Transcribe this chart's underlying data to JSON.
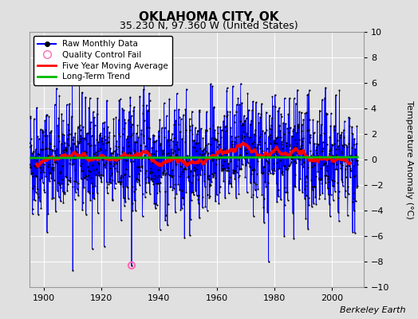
{
  "title": "OKLAHOMA CITY, OK",
  "subtitle": "35.230 N, 97.360 W (United States)",
  "ylabel": "Temperature Anomaly (°C)",
  "credit": "Berkeley Earth",
  "ylim": [
    -10,
    10
  ],
  "xlim": [
    1895,
    2011
  ],
  "yticks": [
    -10,
    -8,
    -6,
    -4,
    -2,
    0,
    2,
    4,
    6,
    8,
    10
  ],
  "xticks": [
    1900,
    1920,
    1940,
    1960,
    1980,
    2000
  ],
  "raw_color": "#0000ff",
  "dot_color": "#000000",
  "moving_avg_color": "#ff0000",
  "trend_color": "#00bb00",
  "qc_fail_color": "#ff69b4",
  "bg_color": "#e0e0e0",
  "grid_color": "#ffffff",
  "start_year": 1895,
  "end_year": 2008,
  "seed": 42,
  "qc_fail_year": 1930,
  "qc_fail_month": 6,
  "qc_fail_value": -8.3,
  "noise_std": 2.2
}
